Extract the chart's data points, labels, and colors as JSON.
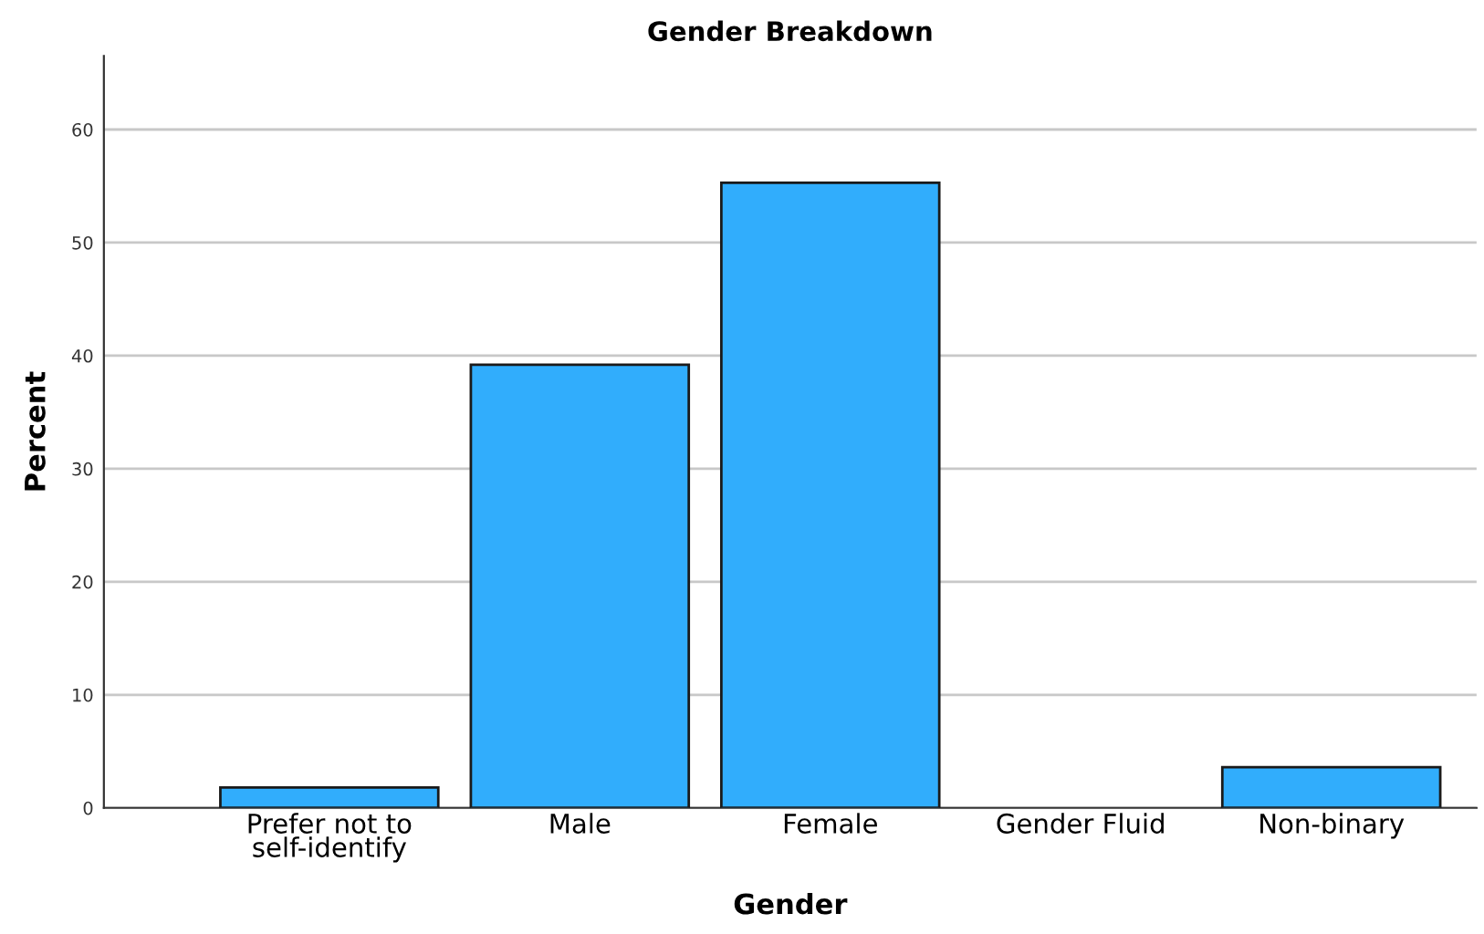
{
  "chart_data": {
    "type": "bar",
    "title": "Gender Breakdown",
    "xlabel": "Gender",
    "ylabel": "Percent",
    "categories": [
      "Prefer not to\nself-identify",
      "Male",
      "Female",
      "Gender Fluid",
      "Non-binary"
    ],
    "values": [
      1.8,
      39.2,
      55.3,
      null,
      3.6
    ],
    "color": "#31adfc",
    "ylim": [
      0,
      66.5
    ],
    "yticks": [
      0,
      10,
      20,
      30,
      40,
      50,
      60
    ],
    "grid": "y"
  }
}
